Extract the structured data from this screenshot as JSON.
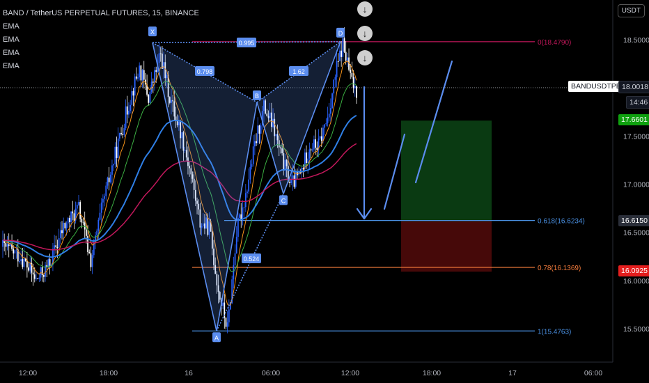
{
  "header": {
    "title": "BAND / TetherUS PERPETUAL FUTURES, 15, BINANCE",
    "indicators": [
      "EMA",
      "EMA",
      "EMA",
      "EMA"
    ]
  },
  "currency_label": "USDT",
  "symbol_tag": "BANDUSDTPERP",
  "price_tags": {
    "current": "18.0018",
    "timer": "14:46",
    "target": "17.6601",
    "entry": "16.6150",
    "stop": "16.0925"
  },
  "colors": {
    "background": "#000000",
    "bull_candle": "#2962ff",
    "bear_candle": "#ffffff",
    "ema_orange": "#f7931a",
    "ema_green": "#3cb043",
    "ema_blue": "#2f7fe6",
    "ema_red": "#c2185b",
    "pattern_line": "#5b8def",
    "fib_0": "#c2185b",
    "fib_0618": "#4a90e2",
    "fib_078": "#f57c3c",
    "fib_1": "#4a90e2",
    "profit_zone": "#0b3d13",
    "loss_zone": "#4a0a0a"
  },
  "icons": [
    "arrow-down-circle-icon",
    "arrow-down-circle-icon",
    "arrow-down-circle-icon"
  ],
  "chart_data": {
    "type": "candlestick",
    "y_axis": {
      "ticks": [
        "18.5000",
        "18.0000",
        "17.5000",
        "17.0000",
        "16.5000",
        "16.0000",
        "15.5000"
      ],
      "ylim": [
        15.3,
        18.8
      ]
    },
    "x_axis": {
      "ticks": [
        "12:00",
        "18:00",
        "16",
        "06:00",
        "12:00",
        "18:00",
        "17",
        "06:00"
      ]
    },
    "pattern_points": [
      {
        "label": "X",
        "price": 18.47
      },
      {
        "label": "A",
        "price": 15.4763
      },
      {
        "label": "B",
        "price": 17.85
      },
      {
        "label": "C",
        "price": 16.9
      },
      {
        "label": "D",
        "price": 18.479
      }
    ],
    "pattern_ratios": [
      "0.995",
      "0.798",
      "1.62",
      "0.524"
    ],
    "fib_levels": [
      {
        "label": "0(18.4790)",
        "price": 18.479
      },
      {
        "label": "0.618(16.6234)",
        "price": 16.6234
      },
      {
        "label": "0.78(16.1369)",
        "price": 16.1369
      },
      {
        "label": "1(15.4763)",
        "price": 15.4763
      }
    ],
    "position": {
      "target": 17.6601,
      "entry": 16.615,
      "stop": 16.0925
    },
    "last_price": 18.0018
  }
}
